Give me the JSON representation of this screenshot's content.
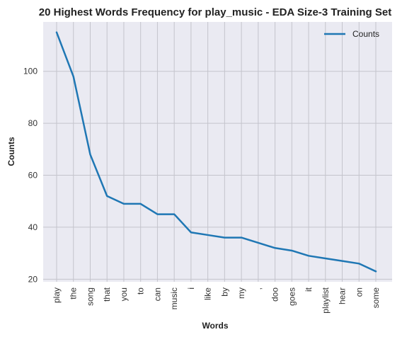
{
  "chart_data": {
    "type": "line",
    "title": "20 Highest Words Frequency for play_music - EDA Size-3 Training Set",
    "xlabel": "Words",
    "ylabel": "Counts",
    "categories": [
      "play",
      "the",
      "song",
      "that",
      "you",
      "to",
      "can",
      "music",
      "i",
      "like",
      "by",
      "my",
      ",",
      "doo",
      "goes",
      "it",
      "playlist",
      "hear",
      "on",
      "some"
    ],
    "series": [
      {
        "name": "Counts",
        "values": [
          115,
          98,
          68,
          52,
          49,
          49,
          45,
          45,
          38,
          37,
          36,
          36,
          34,
          32,
          31,
          29,
          28,
          27,
          26,
          23
        ]
      }
    ],
    "ylim": [
      19,
      119
    ],
    "yticks": [
      20,
      40,
      60,
      80,
      100
    ],
    "grid": true,
    "legend": "top-right",
    "colors": {
      "line": "#1f77b4",
      "plot_bg": "#eaeaf2",
      "grid": "#c4c4cc"
    }
  }
}
